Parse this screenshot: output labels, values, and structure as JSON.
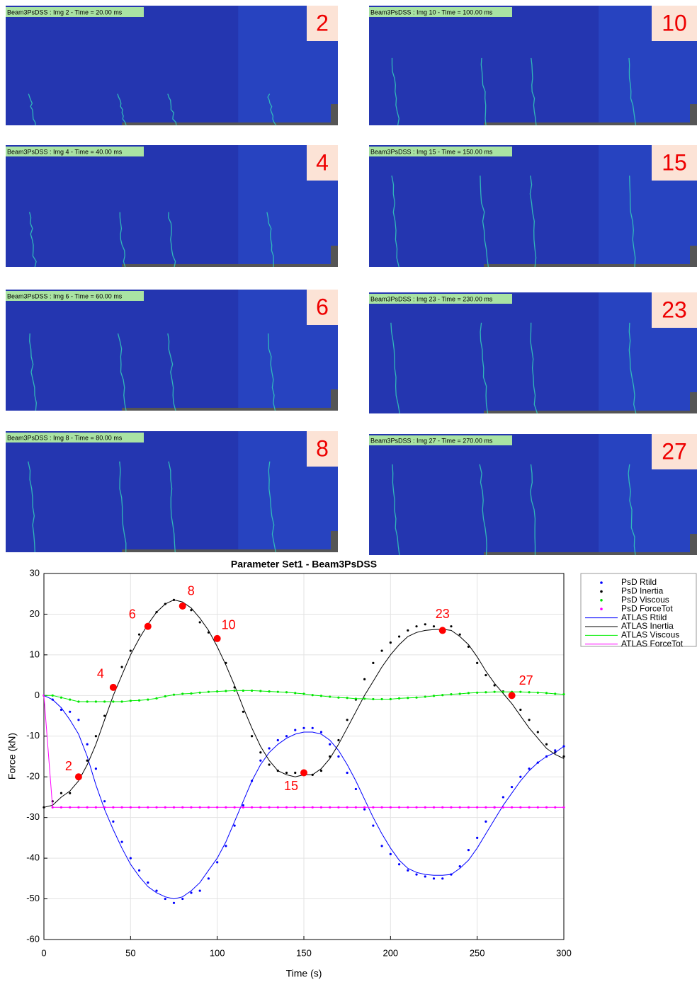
{
  "panels": [
    {
      "caption": "Beam3PsDSS : Img 2 - Time = 20.00 ms",
      "number": "2"
    },
    {
      "caption": "Beam3PsDSS : Img 10 - Time = 100.00 ms",
      "number": "10"
    },
    {
      "caption": "Beam3PsDSS : Img 4 - Time = 40.00 ms",
      "number": "4"
    },
    {
      "caption": "Beam3PsDSS : Img 15 - Time = 150.00 ms",
      "number": "15"
    },
    {
      "caption": "Beam3PsDSS : Img 6 - Time = 60.00 ms",
      "number": "6"
    },
    {
      "caption": "Beam3PsDSS : Img 23 - Time = 230.00 ms",
      "number": "23"
    },
    {
      "caption": "Beam3PsDSS : Img 8 - Time = 80.00 ms",
      "number": "8"
    },
    {
      "caption": "Beam3PsDSS : Img 27 - Time = 270.00 ms",
      "number": "27"
    }
  ],
  "chart_data": {
    "type": "line",
    "title": "Parameter Set1 - Beam3PsDSS",
    "x_label": "Time (s)",
    "y_label": "Force (kN)",
    "xlim": [
      0,
      300
    ],
    "ylim": [
      -60,
      30
    ],
    "xticks": [
      0,
      50,
      100,
      150,
      200,
      250,
      300
    ],
    "yticks": [
      -60,
      -50,
      -40,
      -30,
      -20,
      -10,
      0,
      10,
      20,
      30
    ],
    "grid": true,
    "legend": "outside-right",
    "x": [
      0,
      5,
      10,
      15,
      20,
      25,
      30,
      35,
      40,
      45,
      50,
      55,
      60,
      65,
      70,
      75,
      80,
      85,
      90,
      95,
      100,
      105,
      110,
      115,
      120,
      125,
      130,
      135,
      140,
      145,
      150,
      155,
      160,
      165,
      170,
      175,
      180,
      185,
      190,
      195,
      200,
      205,
      210,
      215,
      220,
      225,
      230,
      235,
      240,
      245,
      250,
      255,
      260,
      265,
      270,
      275,
      280,
      285,
      290,
      295,
      300
    ],
    "series": [
      {
        "name": "PsD Rtild",
        "color": "#0000ff",
        "style": "dots",
        "values": [
          0,
          -1,
          -3.5,
          -4,
          -6,
          -12,
          -18,
          -26,
          -31,
          -36,
          -40,
          -43,
          -46,
          -48,
          -50,
          -51,
          -50,
          -48.5,
          -48,
          -45,
          -41,
          -37,
          -32,
          -27,
          -21,
          -16,
          -13,
          -11,
          -10,
          -8.5,
          -8,
          -8,
          -9,
          -12,
          -15,
          -19,
          -23,
          -28,
          -32,
          -37,
          -39,
          -41.5,
          -43,
          -44,
          -44.5,
          -45,
          -45,
          -44,
          -42,
          -38,
          -35,
          -31,
          -27.5,
          -25,
          -22.5,
          -20,
          -18,
          -16.5,
          -15,
          -13.5,
          -12.5
        ]
      },
      {
        "name": "PsD Inertia",
        "color": "#000000",
        "style": "dots",
        "values": [
          -27.5,
          -26,
          -24,
          -24,
          -20,
          -16,
          -10,
          -5,
          2,
          7,
          11,
          15,
          17.5,
          20.5,
          22.5,
          23.5,
          22,
          21,
          18,
          15.5,
          13.5,
          8,
          2,
          -4,
          -10,
          -14,
          -17,
          -18.5,
          -19,
          -19,
          -19,
          -19.5,
          -18.5,
          -15,
          -11,
          -6,
          -1,
          4,
          8,
          11,
          13,
          14.5,
          16,
          17,
          17.5,
          17,
          16,
          17,
          15,
          12,
          8,
          5,
          2.5,
          1,
          0,
          -3.5,
          -6,
          -9,
          -12,
          -14,
          -15
        ]
      },
      {
        "name": "PsD Viscous",
        "color": "#00dd00",
        "style": "dots",
        "values": [
          0,
          0,
          -0.5,
          -1,
          -1.5,
          -1.5,
          -1.5,
          -1.5,
          -1.5,
          -1.5,
          -1.3,
          -1.2,
          -1,
          -0.7,
          -0.2,
          0.2,
          0.4,
          0.5,
          0.7,
          0.9,
          1,
          1.1,
          1.2,
          1.2,
          1.2,
          1.1,
          1,
          0.9,
          0.8,
          0.6,
          0.4,
          0.1,
          -0.1,
          -0.3,
          -0.5,
          -0.6,
          -0.8,
          -0.8,
          -0.9,
          -0.9,
          -0.9,
          -0.7,
          -0.6,
          -0.5,
          -0.3,
          -0.1,
          0.1,
          0.3,
          0.4,
          0.6,
          0.7,
          0.8,
          0.9,
          0.9,
          0.9,
          0.9,
          0.8,
          0.7,
          0.6,
          0.4,
          0.3
        ]
      },
      {
        "name": "PsD ForceTot",
        "color": "#ff00ff",
        "style": "dots",
        "values": [
          0,
          -27.5,
          -27.5,
          -27.5,
          -27.5,
          -27.5,
          -27.5,
          -27.5,
          -27.5,
          -27.5,
          -27.5,
          -27.5,
          -27.5,
          -27.5,
          -27.5,
          -27.5,
          -27.5,
          -27.5,
          -27.5,
          -27.5,
          -27.5,
          -27.5,
          -27.5,
          -27.5,
          -27.5,
          -27.5,
          -27.5,
          -27.5,
          -27.5,
          -27.5,
          -27.5,
          -27.5,
          -27.5,
          -27.5,
          -27.5,
          -27.5,
          -27.5,
          -27.5,
          -27.5,
          -27.5,
          -27.5,
          -27.5,
          -27.5,
          -27.5,
          -27.5,
          -27.5,
          -27.5,
          -27.5,
          -27.5,
          -27.5,
          -27.5,
          -27.5,
          -27.5,
          -27.5,
          -27.5,
          -27.5,
          -27.5,
          -27.5,
          -27.5,
          -27.5,
          -27.5
        ]
      },
      {
        "name": "ATLAS Rtild",
        "color": "#0000ff",
        "style": "line",
        "values": [
          0,
          -1,
          -3,
          -6,
          -9.5,
          -15,
          -22,
          -28,
          -33,
          -37.5,
          -41.5,
          -44.5,
          -47,
          -48.5,
          -49.5,
          -50,
          -49.5,
          -48,
          -46,
          -43,
          -40,
          -36,
          -31,
          -26,
          -21,
          -17,
          -14,
          -12,
          -10.5,
          -9.5,
          -9,
          -9,
          -9.5,
          -11,
          -13.5,
          -17,
          -21,
          -25.5,
          -30,
          -34,
          -37.5,
          -40.5,
          -42.5,
          -43.5,
          -44,
          -44.2,
          -44.2,
          -44,
          -42.5,
          -40.5,
          -37.5,
          -34,
          -30.5,
          -27,
          -24,
          -21,
          -18.5,
          -16.5,
          -15,
          -14,
          -12.5
        ]
      },
      {
        "name": "ATLAS Inertia",
        "color": "#000000",
        "style": "line",
        "values": [
          -27.5,
          -27,
          -25,
          -23.5,
          -21,
          -17,
          -12,
          -6,
          0,
          5,
          10,
          14,
          17.5,
          20.5,
          22.5,
          23.5,
          23,
          21.5,
          19,
          16,
          12,
          7.5,
          2.5,
          -3,
          -8,
          -12.5,
          -16,
          -18.5,
          -19.5,
          -20,
          -19.5,
          -19.5,
          -18,
          -15.5,
          -12,
          -8,
          -4,
          0,
          3.5,
          7,
          10,
          12.5,
          14.5,
          15.5,
          16,
          16.2,
          16.3,
          16,
          14.5,
          12.5,
          9.5,
          6,
          3,
          0.5,
          -2,
          -5,
          -8,
          -10.5,
          -13,
          -14.5,
          -15.5
        ]
      },
      {
        "name": "ATLAS Viscous",
        "color": "#00ee00",
        "style": "line",
        "values": [
          0,
          0,
          -0.5,
          -1,
          -1.5,
          -1.5,
          -1.5,
          -1.5,
          -1.5,
          -1.5,
          -1.3,
          -1.2,
          -1,
          -0.7,
          -0.2,
          0.2,
          0.4,
          0.5,
          0.7,
          0.9,
          1,
          1.1,
          1.2,
          1.2,
          1.2,
          1.1,
          1,
          0.9,
          0.8,
          0.6,
          0.4,
          0.1,
          -0.1,
          -0.3,
          -0.5,
          -0.6,
          -0.8,
          -0.8,
          -0.9,
          -0.9,
          -0.9,
          -0.7,
          -0.6,
          -0.5,
          -0.3,
          -0.1,
          0.1,
          0.3,
          0.4,
          0.6,
          0.7,
          0.8,
          0.9,
          0.9,
          0.9,
          0.9,
          0.8,
          0.7,
          0.6,
          0.4,
          0.3
        ]
      },
      {
        "name": "ATLAS ForceTot",
        "color": "#ff00ff",
        "style": "line",
        "values": [
          0,
          -27.5,
          -27.5,
          -27.5,
          -27.5,
          -27.5,
          -27.5,
          -27.5,
          -27.5,
          -27.5,
          -27.5,
          -27.5,
          -27.5,
          -27.5,
          -27.5,
          -27.5,
          -27.5,
          -27.5,
          -27.5,
          -27.5,
          -27.5,
          -27.5,
          -27.5,
          -27.5,
          -27.5,
          -27.5,
          -27.5,
          -27.5,
          -27.5,
          -27.5,
          -27.5,
          -27.5,
          -27.5,
          -27.5,
          -27.5,
          -27.5,
          -27.5,
          -27.5,
          -27.5,
          -27.5,
          -27.5,
          -27.5,
          -27.5,
          -27.5,
          -27.5,
          -27.5,
          -27.5,
          -27.5,
          -27.5,
          -27.5,
          -27.5,
          -27.5,
          -27.5,
          -27.5,
          -27.5,
          -27.5,
          -27.5,
          -27.5,
          -27.5,
          -27.5,
          -27.5
        ]
      }
    ],
    "markers": {
      "color": "#ff0000",
      "x": [
        20,
        40,
        60,
        80,
        100,
        150,
        230,
        270
      ],
      "y": [
        -20,
        2,
        17,
        22,
        14,
        -19,
        16,
        0
      ],
      "labels": [
        "2",
        "4",
        "6",
        "8",
        "10",
        "15",
        "23",
        "27"
      ]
    }
  }
}
